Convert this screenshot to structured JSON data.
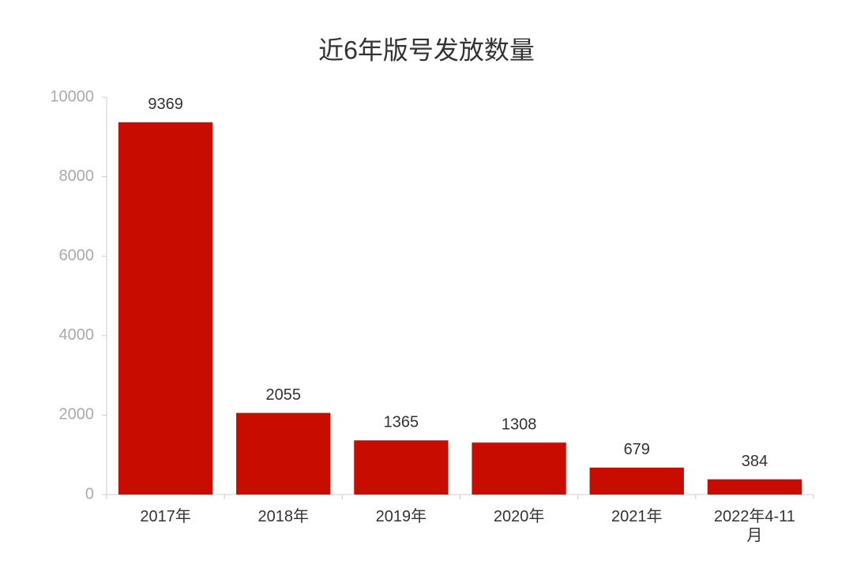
{
  "chart_data": {
    "type": "bar",
    "title": "近6年版号发放数量",
    "categories": [
      "2017年",
      "2018年",
      "2019年",
      "2020年",
      "2021年",
      "2022年4-11月"
    ],
    "values": [
      9369,
      2055,
      1365,
      1308,
      679,
      384
    ],
    "color": "#c80d00",
    "ylim": [
      0,
      10000
    ],
    "yticks": [
      0,
      2000,
      4000,
      6000,
      8000,
      10000
    ],
    "grid": false
  }
}
